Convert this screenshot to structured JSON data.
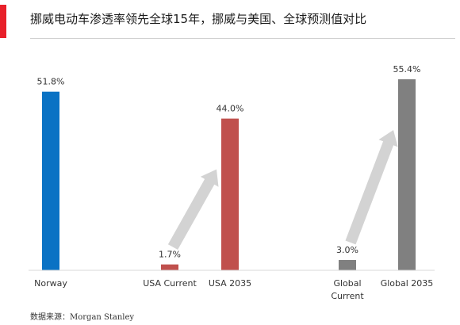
{
  "title": "挪威电动车渗透率领先全球15年，挪威与美国、全球预测值对比",
  "source": "数据来源：Morgan Stanley",
  "colors": {
    "accent": "#e8202a",
    "norway": "#0a72c4",
    "usa": "#c0504d",
    "global": "#808080",
    "arrow": "#d3d3d3"
  },
  "chart_data": {
    "type": "bar",
    "categories": [
      "Norway",
      "USA Current",
      "USA 2035",
      "Global Current",
      "Global 2035"
    ],
    "category_lines": [
      [
        "Norway"
      ],
      [
        "USA Current"
      ],
      [
        "USA 2035"
      ],
      [
        "Global",
        "Current"
      ],
      [
        "Global 2035"
      ]
    ],
    "values": [
      51.8,
      1.7,
      44.0,
      3.0,
      55.4
    ],
    "data_labels": [
      "51.8%",
      "1.7%",
      "44.0%",
      "3.0%",
      "55.4%"
    ],
    "bar_colors": [
      "#0a72c4",
      "#c0504d",
      "#c0504d",
      "#808080",
      "#808080"
    ],
    "ylim": [
      0,
      60
    ],
    "grid": false,
    "legend": "none",
    "annotations": [
      {
        "type": "arrow",
        "from": "USA Current",
        "to": "USA 2035"
      },
      {
        "type": "arrow",
        "from": "Global Current",
        "to": "Global 2035"
      }
    ]
  }
}
